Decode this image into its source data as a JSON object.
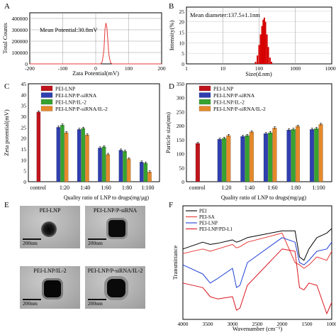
{
  "panels": {
    "A": {
      "letter": "A",
      "annotation": "Mean Potential:30.8mV",
      "ylabel": "Total Counts",
      "xlabel": "Zata Potential(mV)",
      "yticks": [
        "0",
        "100000",
        "200000",
        "300000",
        "400000"
      ],
      "xticks": [
        "-200",
        "-100",
        "0",
        "100",
        "200"
      ]
    },
    "B": {
      "letter": "B",
      "annotation": "Mean diameter:137.5±1.1nm",
      "ylabel": "Intensity(%)",
      "xlabel": "Size(d.nm)",
      "yticks": [
        "0",
        "5",
        "10",
        "15",
        "20",
        "25"
      ],
      "xticks": [
        "1",
        "10",
        "100",
        "1000",
        "10000"
      ]
    },
    "C": {
      "letter": "C",
      "ylabel": "Zeta potential(mV)",
      "xlabel": "Quality ratio of LNP to drugs(mg/μg)",
      "yticks": [
        "0",
        "5",
        "10",
        "15",
        "20",
        "25",
        "30",
        "35",
        "40",
        "45"
      ]
    },
    "D": {
      "letter": "D",
      "ylabel": "Particle size(nm)",
      "xlabel": "Quality ratio of LNP to drugs(mg/μg)",
      "yticks": [
        "0",
        "50",
        "100",
        "150",
        "200",
        "250",
        "300",
        "350"
      ]
    },
    "E": {
      "letter": "E",
      "images": [
        {
          "label": "PEI-LNP",
          "scale": "200nm"
        },
        {
          "label": "PEI-LNP/P-siRNA",
          "scale": "200nm"
        },
        {
          "label": "PEI-LNP/IL-2",
          "scale": "200nm"
        },
        {
          "label": "PEI-LNP/P-siRNA/IL-2",
          "scale": "200nm"
        }
      ]
    },
    "F": {
      "letter": "F",
      "ylabel": "Transmittance",
      "xlabel": "Wavenumber (cm⁻¹)",
      "xticks": [
        "4000",
        "3500",
        "3000",
        "2500",
        "2000",
        "1500",
        "1000"
      ]
    }
  },
  "chart_data": [
    {
      "panel": "A",
      "type": "line",
      "x": [
        -200,
        0,
        15,
        20,
        25,
        28,
        31,
        34,
        37,
        40,
        45,
        50,
        200
      ],
      "series": [
        {
          "values": [
            0,
            0,
            0,
            20000,
            120000,
            300000,
            360000,
            320000,
            200000,
            80000,
            10000,
            0,
            0
          ],
          "color": "#e53935"
        }
      ],
      "xlim": [
        -200,
        200
      ],
      "ylim": [
        0,
        450000
      ],
      "grid": true
    },
    {
      "panel": "B",
      "type": "bar",
      "x_scale": "log",
      "x": [
        80,
        90,
        100,
        110,
        120,
        130,
        140,
        150,
        165,
        180,
        200,
        220
      ],
      "values": [
        1,
        4,
        9,
        14,
        18,
        21,
        22,
        20,
        14,
        8,
        3,
        1
      ],
      "color": "#d60000",
      "xlim": [
        1,
        10000
      ],
      "ylim": [
        0,
        27
      ],
      "grid": true
    },
    {
      "panel": "C",
      "type": "bar",
      "categories": [
        "control",
        "1:20",
        "1:40",
        "1:60",
        "1:80",
        "1:100"
      ],
      "legend": [
        "PEI-LNP",
        "PEI-LNP/P-siRNA",
        "PEI-LNP/IL-2",
        "PEI-LNP/P-siRNA/IL-2"
      ],
      "series": [
        {
          "name": "PEI-LNP",
          "color": "#c0141c",
          "values": [
            32,
            null,
            null,
            null,
            null,
            null
          ]
        },
        {
          "name": "PEI-LNP/P-siRNA",
          "color": "#2f3fb0",
          "values": [
            null,
            25,
            24,
            15.5,
            14.5,
            9
          ]
        },
        {
          "name": "PEI-LNP/IL-2",
          "color": "#36a32f",
          "values": [
            null,
            26,
            24.5,
            16,
            14,
            8.5
          ]
        },
        {
          "name": "PEI-LNP/P-siRNA/IL-2",
          "color": "#e5892b",
          "values": [
            null,
            22.5,
            21.5,
            12.5,
            10.5,
            4.5
          ]
        }
      ],
      "ylim": [
        0,
        45
      ]
    },
    {
      "panel": "D",
      "type": "bar",
      "categories": [
        "control",
        "1:20",
        "1:40",
        "1:60",
        "1:80",
        "1:100"
      ],
      "legend": [
        "PEI-LNP",
        "PEI-LNP/P-siRNA",
        "PEI-LNP/IL-2",
        "PEI-LNP/P-siRNA/IL-2"
      ],
      "series": [
        {
          "name": "PEI-LNP",
          "color": "#c0141c",
          "values": [
            137,
            null,
            null,
            null,
            null,
            null
          ]
        },
        {
          "name": "PEI-LNP/P-siRNA",
          "color": "#2f3fb0",
          "values": [
            null,
            152,
            162,
            172,
            185,
            187
          ]
        },
        {
          "name": "PEI-LNP/IL-2",
          "color": "#36a32f",
          "values": [
            null,
            155,
            165,
            175,
            187,
            190
          ]
        },
        {
          "name": "PEI-LNP/P-siRNA/IL-2",
          "color": "#e5892b",
          "values": [
            null,
            165,
            178,
            192,
            198,
            205
          ]
        }
      ],
      "ylim": [
        0,
        350
      ]
    },
    {
      "panel": "F",
      "type": "line",
      "legend": [
        "PEI",
        "PEI-SA",
        "PEI-LNP",
        "PEI-LNP/PD-L1"
      ],
      "x": [
        4000,
        3600,
        3450,
        3300,
        3000,
        2920,
        2850,
        2700,
        2000,
        1740,
        1650,
        1560,
        1460,
        1300,
        1100,
        1000
      ],
      "series": [
        {
          "name": "PEI",
          "color": "#000000",
          "values": [
            62,
            68,
            66,
            67,
            70,
            68,
            69,
            72,
            78,
            78,
            55,
            52,
            62,
            72,
            76,
            80
          ]
        },
        {
          "name": "PEI-SA",
          "color": "#e53935",
          "values": [
            58,
            62,
            60,
            62,
            66,
            63,
            64,
            68,
            76,
            50,
            48,
            45,
            48,
            55,
            52,
            60
          ]
        },
        {
          "name": "PEI-LNP",
          "color": "#1e3fd6",
          "values": [
            48,
            40,
            32,
            36,
            45,
            28,
            30,
            50,
            72,
            68,
            50,
            48,
            52,
            60,
            62,
            68
          ]
        },
        {
          "name": "PEI-LNP/PD-L1",
          "color": "#d8141c",
          "values": [
            32,
            28,
            20,
            18,
            20,
            8,
            10,
            30,
            62,
            60,
            28,
            26,
            32,
            30,
            5,
            15
          ]
        }
      ],
      "xlim": [
        4000,
        1000
      ],
      "ylim": [
        0,
        100
      ],
      "xreversed": true
    }
  ]
}
